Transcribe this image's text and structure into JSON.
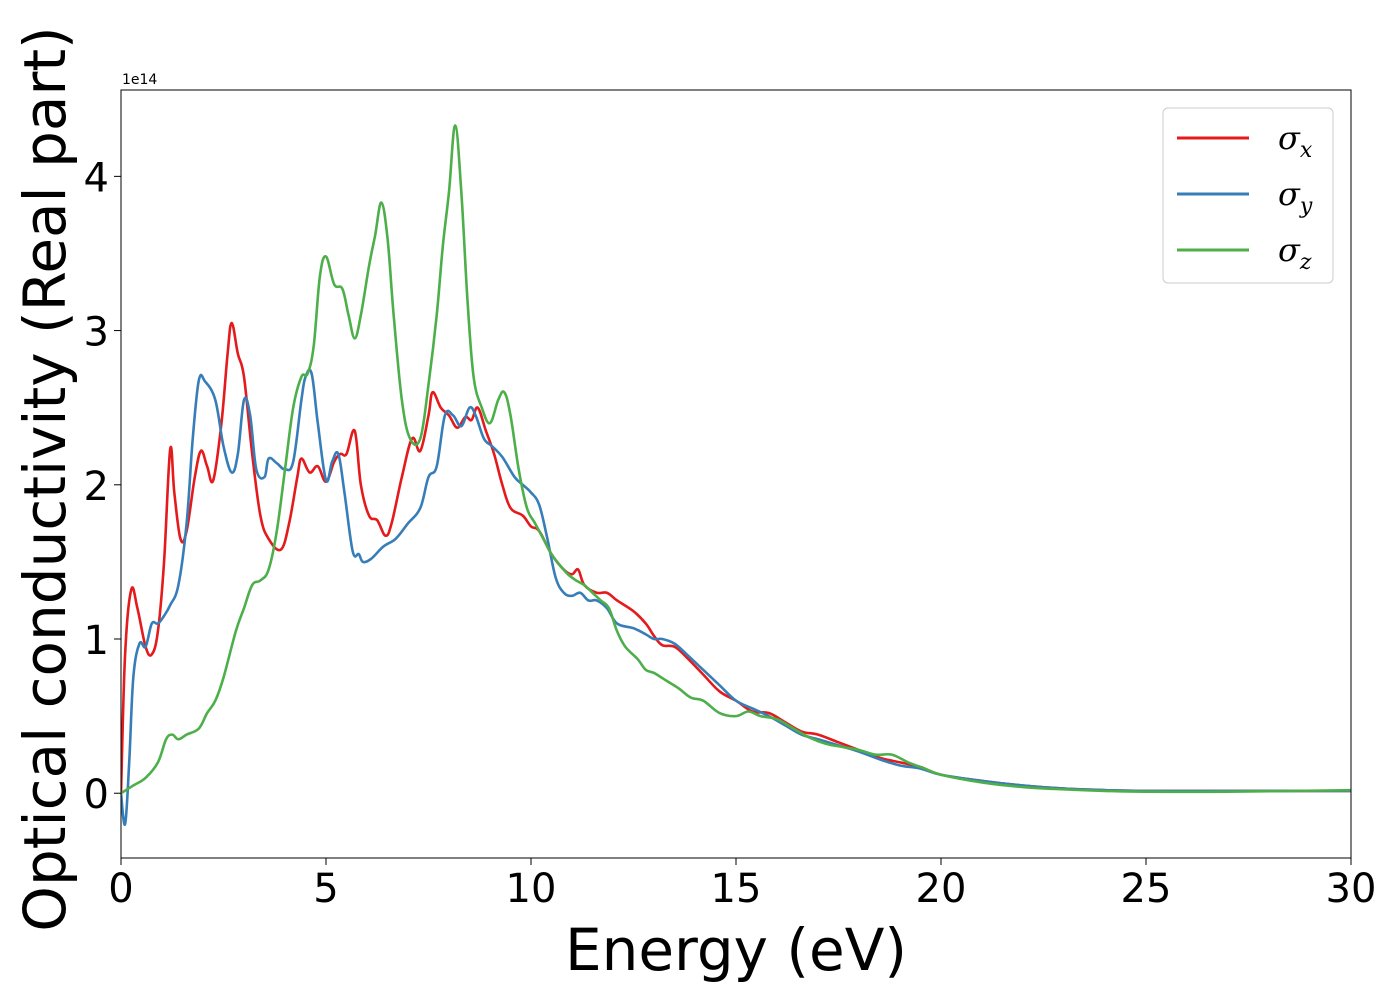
{
  "chart_data": {
    "type": "line",
    "xlabel": "Energy (eV)",
    "ylabel": "Optical conductivity (Real part)",
    "offset_text": "1e14",
    "xlim": [
      0,
      30
    ],
    "ylim": [
      -0.42,
      4.56
    ],
    "x_ticks": [
      0,
      5,
      10,
      15,
      20,
      25,
      30
    ],
    "y_ticks": [
      0,
      1,
      2,
      3,
      4
    ],
    "grid": false,
    "legend_position": "top-right",
    "series": [
      {
        "name": "σ",
        "subscript": "x",
        "color": "#e41a1c",
        "points": [
          [
            0,
            0
          ],
          [
            0.1,
            0.9
          ],
          [
            0.25,
            1.32
          ],
          [
            0.4,
            1.2
          ],
          [
            0.6,
            0.95
          ],
          [
            0.75,
            0.9
          ],
          [
            0.9,
            1.05
          ],
          [
            1.05,
            1.5
          ],
          [
            1.2,
            2.23
          ],
          [
            1.3,
            1.95
          ],
          [
            1.45,
            1.65
          ],
          [
            1.6,
            1.7
          ],
          [
            1.8,
            2.05
          ],
          [
            1.95,
            2.22
          ],
          [
            2.1,
            2.12
          ],
          [
            2.25,
            2.03
          ],
          [
            2.45,
            2.4
          ],
          [
            2.6,
            2.85
          ],
          [
            2.7,
            3.05
          ],
          [
            2.85,
            2.85
          ],
          [
            3.0,
            2.7
          ],
          [
            3.2,
            2.2
          ],
          [
            3.4,
            1.8
          ],
          [
            3.6,
            1.65
          ],
          [
            3.9,
            1.58
          ],
          [
            4.1,
            1.75
          ],
          [
            4.3,
            2.05
          ],
          [
            4.4,
            2.17
          ],
          [
            4.6,
            2.08
          ],
          [
            4.8,
            2.12
          ],
          [
            5.0,
            2.02
          ],
          [
            5.2,
            2.15
          ],
          [
            5.35,
            2.2
          ],
          [
            5.5,
            2.2
          ],
          [
            5.7,
            2.35
          ],
          [
            5.85,
            2.0
          ],
          [
            6.05,
            1.8
          ],
          [
            6.25,
            1.77
          ],
          [
            6.45,
            1.67
          ],
          [
            6.6,
            1.75
          ],
          [
            6.85,
            2.05
          ],
          [
            7.1,
            2.3
          ],
          [
            7.3,
            2.22
          ],
          [
            7.5,
            2.45
          ],
          [
            7.6,
            2.6
          ],
          [
            7.8,
            2.5
          ],
          [
            8.0,
            2.45
          ],
          [
            8.2,
            2.37
          ],
          [
            8.4,
            2.44
          ],
          [
            8.55,
            2.42
          ],
          [
            8.7,
            2.5
          ],
          [
            8.9,
            2.35
          ],
          [
            9.1,
            2.2
          ],
          [
            9.3,
            2.0
          ],
          [
            9.5,
            1.85
          ],
          [
            9.8,
            1.8
          ],
          [
            10.0,
            1.73
          ],
          [
            10.2,
            1.7
          ],
          [
            10.5,
            1.55
          ],
          [
            10.8,
            1.45
          ],
          [
            11.0,
            1.42
          ],
          [
            11.15,
            1.45
          ],
          [
            11.3,
            1.35
          ],
          [
            11.6,
            1.3
          ],
          [
            11.85,
            1.3
          ],
          [
            12.1,
            1.25
          ],
          [
            12.5,
            1.18
          ],
          [
            12.8,
            1.1
          ],
          [
            13.0,
            1.02
          ],
          [
            13.2,
            0.96
          ],
          [
            13.5,
            0.95
          ],
          [
            13.8,
            0.88
          ],
          [
            14.2,
            0.77
          ],
          [
            14.6,
            0.66
          ],
          [
            15.0,
            0.6
          ],
          [
            15.4,
            0.53
          ],
          [
            15.8,
            0.52
          ],
          [
            16.2,
            0.46
          ],
          [
            16.6,
            0.4
          ],
          [
            17.0,
            0.38
          ],
          [
            17.5,
            0.33
          ],
          [
            18.0,
            0.28
          ],
          [
            18.5,
            0.23
          ],
          [
            19.0,
            0.2
          ],
          [
            19.5,
            0.17
          ],
          [
            20.0,
            0.12
          ],
          [
            21.0,
            0.08
          ],
          [
            22.0,
            0.05
          ],
          [
            23.0,
            0.03
          ],
          [
            24.0,
            0.02
          ],
          [
            25.0,
            0.015
          ],
          [
            27.0,
            0.015
          ],
          [
            30.0,
            0.015
          ]
        ]
      },
      {
        "name": "σ",
        "subscript": "y",
        "color": "#377eb8",
        "points": [
          [
            0,
            0
          ],
          [
            0.1,
            -0.2
          ],
          [
            0.2,
            0.2
          ],
          [
            0.3,
            0.75
          ],
          [
            0.45,
            0.97
          ],
          [
            0.6,
            0.95
          ],
          [
            0.75,
            1.1
          ],
          [
            0.9,
            1.1
          ],
          [
            1.05,
            1.15
          ],
          [
            1.2,
            1.22
          ],
          [
            1.4,
            1.35
          ],
          [
            1.6,
            1.75
          ],
          [
            1.75,
            2.3
          ],
          [
            1.9,
            2.68
          ],
          [
            2.05,
            2.67
          ],
          [
            2.3,
            2.55
          ],
          [
            2.5,
            2.25
          ],
          [
            2.7,
            2.08
          ],
          [
            2.85,
            2.2
          ],
          [
            3.0,
            2.55
          ],
          [
            3.15,
            2.45
          ],
          [
            3.3,
            2.1
          ],
          [
            3.5,
            2.05
          ],
          [
            3.6,
            2.17
          ],
          [
            3.8,
            2.14
          ],
          [
            4.0,
            2.1
          ],
          [
            4.2,
            2.15
          ],
          [
            4.4,
            2.55
          ],
          [
            4.5,
            2.7
          ],
          [
            4.65,
            2.72
          ],
          [
            4.8,
            2.4
          ],
          [
            5.0,
            2.03
          ],
          [
            5.15,
            2.15
          ],
          [
            5.3,
            2.2
          ],
          [
            5.45,
            1.95
          ],
          [
            5.65,
            1.57
          ],
          [
            5.8,
            1.55
          ],
          [
            5.9,
            1.5
          ],
          [
            6.1,
            1.52
          ],
          [
            6.4,
            1.6
          ],
          [
            6.7,
            1.65
          ],
          [
            7.0,
            1.75
          ],
          [
            7.3,
            1.85
          ],
          [
            7.5,
            2.05
          ],
          [
            7.7,
            2.12
          ],
          [
            7.9,
            2.45
          ],
          [
            8.1,
            2.45
          ],
          [
            8.3,
            2.38
          ],
          [
            8.5,
            2.5
          ],
          [
            8.65,
            2.45
          ],
          [
            8.85,
            2.3
          ],
          [
            9.05,
            2.25
          ],
          [
            9.3,
            2.18
          ],
          [
            9.6,
            2.05
          ],
          [
            9.8,
            2.0
          ],
          [
            10.0,
            1.95
          ],
          [
            10.2,
            1.87
          ],
          [
            10.4,
            1.65
          ],
          [
            10.6,
            1.4
          ],
          [
            10.8,
            1.3
          ],
          [
            11.0,
            1.28
          ],
          [
            11.2,
            1.3
          ],
          [
            11.4,
            1.25
          ],
          [
            11.6,
            1.25
          ],
          [
            11.85,
            1.2
          ],
          [
            12.1,
            1.1
          ],
          [
            12.5,
            1.07
          ],
          [
            12.8,
            1.03
          ],
          [
            13.0,
            1.0
          ],
          [
            13.2,
            1.0
          ],
          [
            13.5,
            0.97
          ],
          [
            13.8,
            0.9
          ],
          [
            14.2,
            0.8
          ],
          [
            14.6,
            0.7
          ],
          [
            15.0,
            0.6
          ],
          [
            15.4,
            0.55
          ],
          [
            15.8,
            0.5
          ],
          [
            16.2,
            0.44
          ],
          [
            16.6,
            0.38
          ],
          [
            17.0,
            0.35
          ],
          [
            17.5,
            0.31
          ],
          [
            18.0,
            0.27
          ],
          [
            18.5,
            0.22
          ],
          [
            19.0,
            0.18
          ],
          [
            19.5,
            0.16
          ],
          [
            20.0,
            0.12
          ],
          [
            21.0,
            0.08
          ],
          [
            22.0,
            0.05
          ],
          [
            23.0,
            0.03
          ],
          [
            24.0,
            0.02
          ],
          [
            25.0,
            0.015
          ],
          [
            27.0,
            0.015
          ],
          [
            30.0,
            0.015
          ]
        ]
      },
      {
        "name": "σ",
        "subscript": "z",
        "color": "#4daf4a",
        "points": [
          [
            0,
            0
          ],
          [
            0.3,
            0.05
          ],
          [
            0.6,
            0.1
          ],
          [
            0.9,
            0.2
          ],
          [
            1.1,
            0.35
          ],
          [
            1.25,
            0.38
          ],
          [
            1.4,
            0.35
          ],
          [
            1.6,
            0.38
          ],
          [
            1.9,
            0.42
          ],
          [
            2.1,
            0.52
          ],
          [
            2.3,
            0.6
          ],
          [
            2.5,
            0.75
          ],
          [
            2.8,
            1.05
          ],
          [
            3.0,
            1.2
          ],
          [
            3.2,
            1.35
          ],
          [
            3.4,
            1.38
          ],
          [
            3.6,
            1.45
          ],
          [
            3.8,
            1.7
          ],
          [
            4.0,
            2.1
          ],
          [
            4.2,
            2.5
          ],
          [
            4.4,
            2.7
          ],
          [
            4.55,
            2.72
          ],
          [
            4.7,
            2.9
          ],
          [
            4.85,
            3.35
          ],
          [
            5.0,
            3.48
          ],
          [
            5.2,
            3.3
          ],
          [
            5.4,
            3.27
          ],
          [
            5.55,
            3.1
          ],
          [
            5.7,
            2.95
          ],
          [
            5.85,
            3.1
          ],
          [
            6.05,
            3.42
          ],
          [
            6.2,
            3.62
          ],
          [
            6.35,
            3.83
          ],
          [
            6.5,
            3.6
          ],
          [
            6.65,
            3.1
          ],
          [
            6.85,
            2.55
          ],
          [
            7.05,
            2.3
          ],
          [
            7.3,
            2.3
          ],
          [
            7.5,
            2.65
          ],
          [
            7.7,
            3.1
          ],
          [
            7.85,
            3.55
          ],
          [
            8.0,
            3.9
          ],
          [
            8.15,
            4.33
          ],
          [
            8.3,
            3.9
          ],
          [
            8.45,
            3.2
          ],
          [
            8.6,
            2.7
          ],
          [
            8.8,
            2.5
          ],
          [
            9.0,
            2.4
          ],
          [
            9.2,
            2.55
          ],
          [
            9.35,
            2.6
          ],
          [
            9.5,
            2.45
          ],
          [
            9.7,
            2.1
          ],
          [
            9.9,
            1.85
          ],
          [
            10.1,
            1.75
          ],
          [
            10.3,
            1.65
          ],
          [
            10.5,
            1.55
          ],
          [
            10.7,
            1.48
          ],
          [
            10.9,
            1.42
          ],
          [
            11.1,
            1.38
          ],
          [
            11.3,
            1.35
          ],
          [
            11.5,
            1.3
          ],
          [
            11.7,
            1.25
          ],
          [
            11.9,
            1.2
          ],
          [
            12.1,
            1.05
          ],
          [
            12.3,
            0.95
          ],
          [
            12.6,
            0.87
          ],
          [
            12.8,
            0.8
          ],
          [
            13.0,
            0.78
          ],
          [
            13.3,
            0.73
          ],
          [
            13.6,
            0.68
          ],
          [
            13.9,
            0.62
          ],
          [
            14.2,
            0.6
          ],
          [
            14.6,
            0.52
          ],
          [
            15.0,
            0.5
          ],
          [
            15.3,
            0.53
          ],
          [
            15.6,
            0.5
          ],
          [
            16.0,
            0.48
          ],
          [
            16.4,
            0.42
          ],
          [
            16.8,
            0.36
          ],
          [
            17.2,
            0.32
          ],
          [
            17.6,
            0.3
          ],
          [
            18.0,
            0.28
          ],
          [
            18.4,
            0.25
          ],
          [
            18.8,
            0.25
          ],
          [
            19.2,
            0.2
          ],
          [
            19.6,
            0.16
          ],
          [
            20.0,
            0.12
          ],
          [
            21.0,
            0.07
          ],
          [
            22.0,
            0.04
          ],
          [
            23.0,
            0.025
          ],
          [
            24.0,
            0.015
          ],
          [
            25.0,
            0.01
          ],
          [
            27.0,
            0.01
          ],
          [
            30.0,
            0.02
          ]
        ]
      }
    ]
  }
}
